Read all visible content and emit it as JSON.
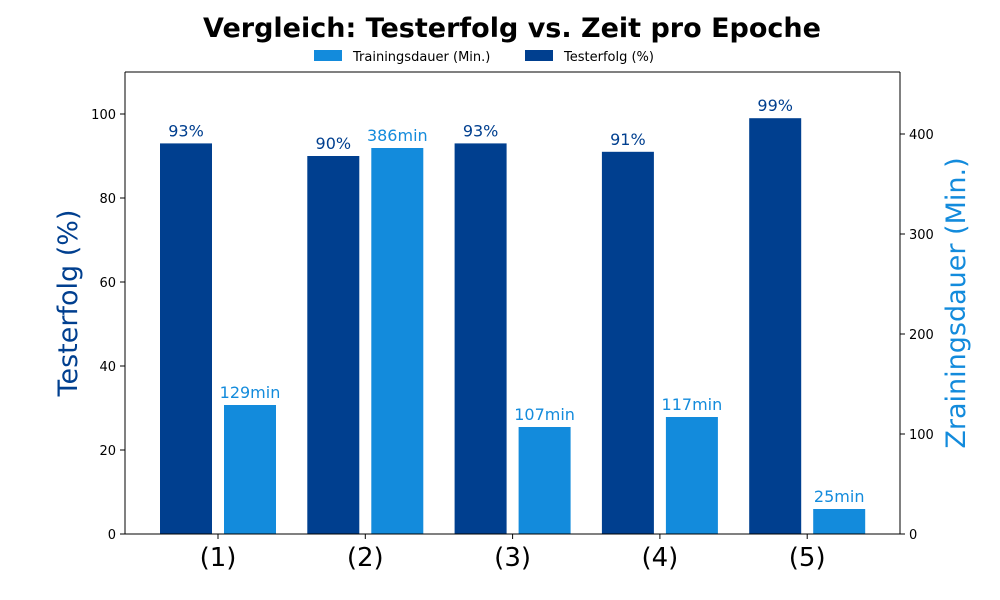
{
  "chart_data": {
    "type": "bar",
    "title": "Vergleich: Testerfolg vs. Zeit pro Epoche",
    "categories": [
      "(1)",
      "(2)",
      "(3)",
      "(4)",
      "(5)"
    ],
    "ylabel_left": "Testerfolg (%)",
    "ylabel_right": "Zrainingsdauer (Min.)",
    "ylim_left": [
      0,
      110
    ],
    "ylim_right": [
      0,
      462
    ],
    "yticks_left": [
      0,
      20,
      40,
      60,
      80,
      100
    ],
    "yticks_right": [
      0,
      100,
      200,
      300,
      400
    ],
    "legend_position": "top-center",
    "grid": false,
    "series": [
      {
        "name": "Testerfolg (%)",
        "axis": "left",
        "color": "#003f8f",
        "values": [
          93,
          90,
          93,
          91,
          99
        ],
        "labels": [
          "93%",
          "90%",
          "93%",
          "91%",
          "99%"
        ]
      },
      {
        "name": "Trainingsdauer (Min.)",
        "axis": "right",
        "color": "#138bdc",
        "values": [
          129,
          386,
          107,
          117,
          25
        ],
        "labels": [
          "129min",
          "386min",
          "107min",
          "117min",
          "25min"
        ]
      }
    ],
    "legend_order": [
      1,
      0
    ]
  }
}
